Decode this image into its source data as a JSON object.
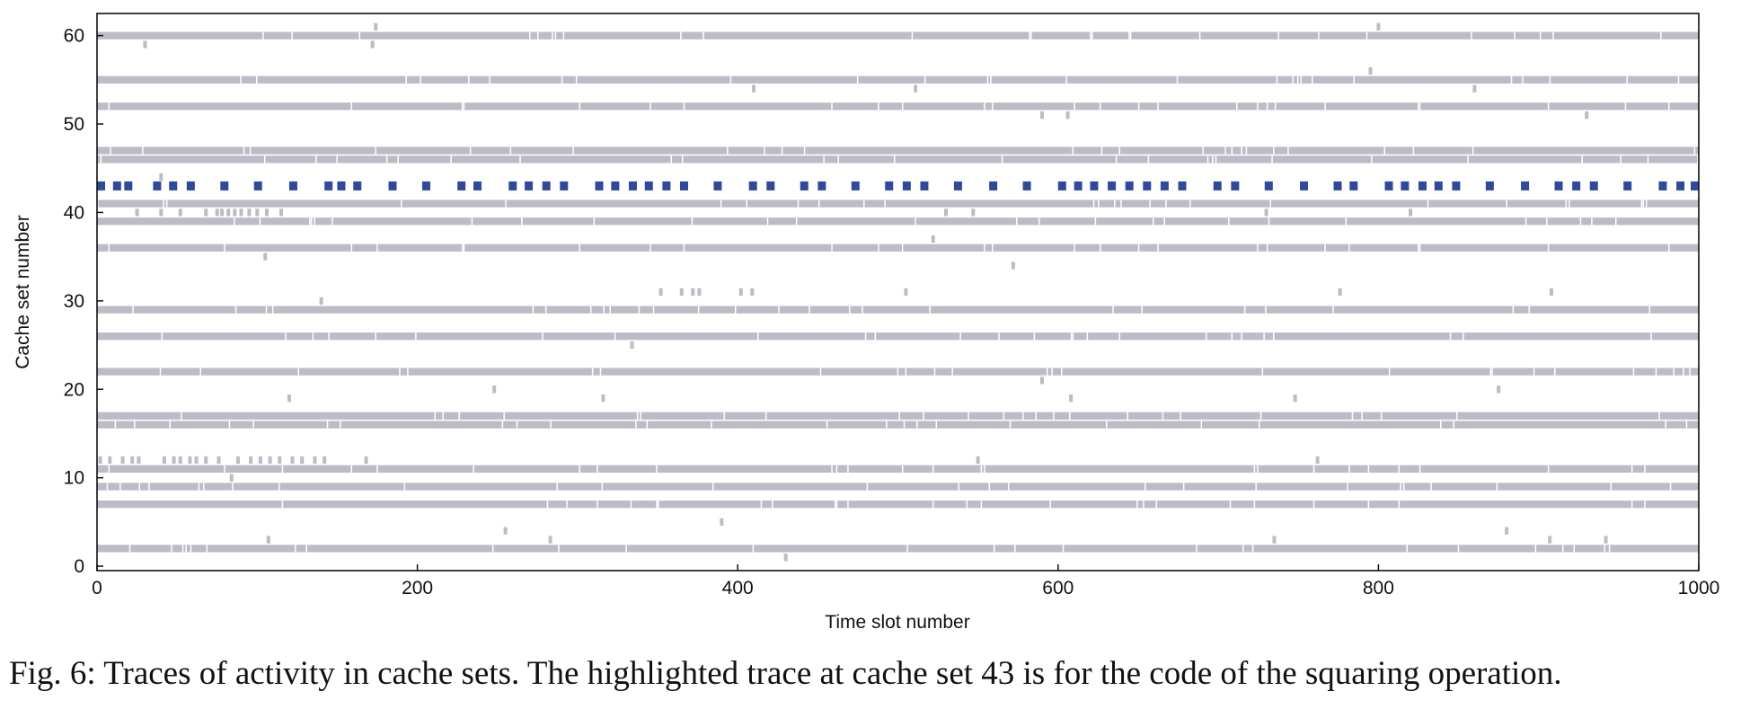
{
  "caption": "Fig. 6: Traces of activity in cache sets. The highlighted trace at cache set 43 is for the code of the squaring operation.",
  "chart_data": {
    "type": "scatter",
    "title": "",
    "xlabel": "Time slot number",
    "ylabel": "Cache set number",
    "xlim": [
      0,
      1000
    ],
    "ylim": [
      -0.5,
      62.5
    ],
    "xticks": [
      0,
      200,
      400,
      600,
      800,
      1000
    ],
    "yticks": [
      0,
      10,
      20,
      30,
      40,
      50,
      60
    ],
    "grid": false,
    "colors": {
      "background_trace": "#bbbcc6",
      "highlighted_trace": "#2f4a9a"
    },
    "highlighted_set": 43,
    "dense_traces": [
      {
        "set": 60,
        "x_start": 0,
        "x_end": 1000
      },
      {
        "set": 55,
        "x_start": 0,
        "x_end": 1000
      },
      {
        "set": 52,
        "x_start": 0,
        "x_end": 1000
      },
      {
        "set": 47,
        "x_start": 0,
        "x_end": 1000
      },
      {
        "set": 46,
        "x_start": 0,
        "x_end": 1000
      },
      {
        "set": 41,
        "x_start": 0,
        "x_end": 1000
      },
      {
        "set": 39,
        "x_start": 0,
        "x_end": 1000
      },
      {
        "set": 36,
        "x_start": 0,
        "x_end": 1000
      },
      {
        "set": 29,
        "x_start": 0,
        "x_end": 1000
      },
      {
        "set": 26,
        "x_start": 0,
        "x_end": 1000
      },
      {
        "set": 22,
        "x_start": 0,
        "x_end": 1000
      },
      {
        "set": 17,
        "x_start": 0,
        "x_end": 1000
      },
      {
        "set": 16,
        "x_start": 0,
        "x_end": 1000
      },
      {
        "set": 11,
        "x_start": 0,
        "x_end": 1000
      },
      {
        "set": 9,
        "x_start": 0,
        "x_end": 1000
      },
      {
        "set": 7,
        "x_start": 0,
        "x_end": 1000
      },
      {
        "set": 2,
        "x_start": 0,
        "x_end": 1000
      }
    ],
    "highlighted_x": [
      0,
      10,
      17,
      35,
      45,
      56,
      77,
      98,
      120,
      142,
      150,
      160,
      182,
      203,
      225,
      235,
      257,
      267,
      278,
      289,
      311,
      321,
      332,
      342,
      353,
      364,
      385,
      407,
      418,
      439,
      450,
      471,
      492,
      503,
      514,
      535,
      557,
      578,
      600,
      610,
      620,
      631,
      642,
      653,
      664,
      675,
      697,
      708,
      729,
      751,
      772,
      782,
      804,
      814,
      825,
      835,
      846,
      867,
      889,
      910,
      921,
      932,
      953,
      975,
      986,
      996
    ],
    "sparse_points": [
      {
        "x": 174,
        "y": 61
      },
      {
        "x": 800,
        "y": 61
      },
      {
        "x": 30,
        "y": 59
      },
      {
        "x": 172,
        "y": 59
      },
      {
        "x": 795,
        "y": 56
      },
      {
        "x": 410,
        "y": 54
      },
      {
        "x": 511,
        "y": 54
      },
      {
        "x": 860,
        "y": 54
      },
      {
        "x": 590,
        "y": 51
      },
      {
        "x": 606,
        "y": 51
      },
      {
        "x": 930,
        "y": 51
      },
      {
        "x": 40,
        "y": 44
      },
      {
        "x": 25,
        "y": 40
      },
      {
        "x": 40,
        "y": 40
      },
      {
        "x": 52,
        "y": 40
      },
      {
        "x": 68,
        "y": 40
      },
      {
        "x": 75,
        "y": 40
      },
      {
        "x": 78,
        "y": 40
      },
      {
        "x": 82,
        "y": 40
      },
      {
        "x": 86,
        "y": 40
      },
      {
        "x": 90,
        "y": 40
      },
      {
        "x": 95,
        "y": 40
      },
      {
        "x": 100,
        "y": 40
      },
      {
        "x": 106,
        "y": 40
      },
      {
        "x": 115,
        "y": 40
      },
      {
        "x": 530,
        "y": 40
      },
      {
        "x": 547,
        "y": 40
      },
      {
        "x": 730,
        "y": 40
      },
      {
        "x": 820,
        "y": 40
      },
      {
        "x": 522,
        "y": 37
      },
      {
        "x": 105,
        "y": 35
      },
      {
        "x": 572,
        "y": 34
      },
      {
        "x": 352,
        "y": 31
      },
      {
        "x": 365,
        "y": 31
      },
      {
        "x": 372,
        "y": 31
      },
      {
        "x": 376,
        "y": 31
      },
      {
        "x": 402,
        "y": 31
      },
      {
        "x": 409,
        "y": 31
      },
      {
        "x": 505,
        "y": 31
      },
      {
        "x": 776,
        "y": 31
      },
      {
        "x": 908,
        "y": 31
      },
      {
        "x": 140,
        "y": 30
      },
      {
        "x": 334,
        "y": 25
      },
      {
        "x": 590,
        "y": 21
      },
      {
        "x": 248,
        "y": 20
      },
      {
        "x": 875,
        "y": 20
      },
      {
        "x": 120,
        "y": 19
      },
      {
        "x": 316,
        "y": 19
      },
      {
        "x": 608,
        "y": 19
      },
      {
        "x": 748,
        "y": 19
      },
      {
        "x": 2,
        "y": 12
      },
      {
        "x": 8,
        "y": 12
      },
      {
        "x": 16,
        "y": 12
      },
      {
        "x": 22,
        "y": 12
      },
      {
        "x": 26,
        "y": 12
      },
      {
        "x": 42,
        "y": 12
      },
      {
        "x": 48,
        "y": 12
      },
      {
        "x": 52,
        "y": 12
      },
      {
        "x": 58,
        "y": 12
      },
      {
        "x": 62,
        "y": 12
      },
      {
        "x": 68,
        "y": 12
      },
      {
        "x": 76,
        "y": 12
      },
      {
        "x": 88,
        "y": 12
      },
      {
        "x": 96,
        "y": 12
      },
      {
        "x": 102,
        "y": 12
      },
      {
        "x": 108,
        "y": 12
      },
      {
        "x": 114,
        "y": 12
      },
      {
        "x": 122,
        "y": 12
      },
      {
        "x": 128,
        "y": 12
      },
      {
        "x": 136,
        "y": 12
      },
      {
        "x": 142,
        "y": 12
      },
      {
        "x": 168,
        "y": 12
      },
      {
        "x": 550,
        "y": 12
      },
      {
        "x": 762,
        "y": 12
      },
      {
        "x": 84,
        "y": 10
      },
      {
        "x": 390,
        "y": 5
      },
      {
        "x": 255,
        "y": 4
      },
      {
        "x": 880,
        "y": 4
      },
      {
        "x": 107,
        "y": 3
      },
      {
        "x": 283,
        "y": 3
      },
      {
        "x": 735,
        "y": 3
      },
      {
        "x": 942,
        "y": 3
      },
      {
        "x": 907,
        "y": 3
      },
      {
        "x": 430,
        "y": 1
      }
    ]
  }
}
